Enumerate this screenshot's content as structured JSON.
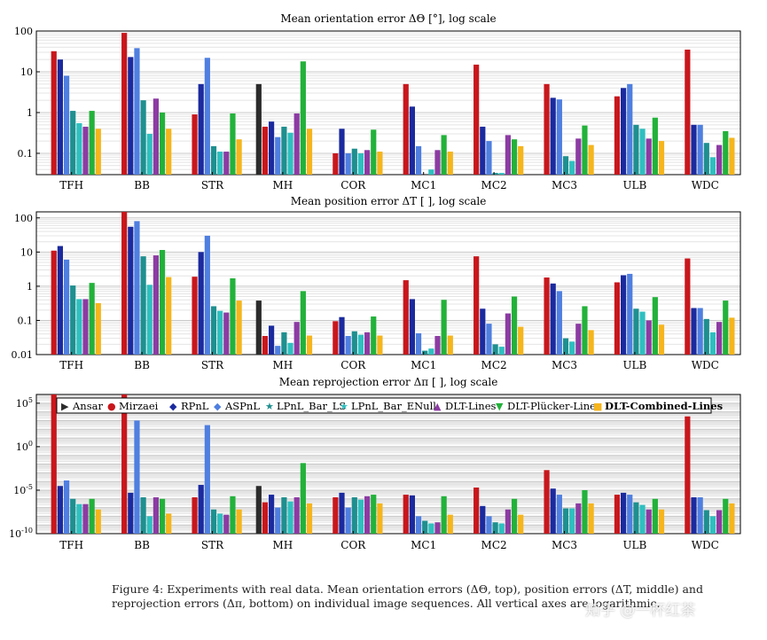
{
  "chart_data": [
    {
      "type": "bar",
      "title": "Mean orientation error ΔΘ [°], log scale",
      "scale": "log",
      "ylim": [
        0.03,
        100
      ],
      "yticks": [
        100,
        10,
        1,
        0.1
      ],
      "ytick_labels": [
        "100",
        "10",
        "1",
        "0.1"
      ],
      "categories": [
        "TFH",
        "BB",
        "STR",
        "MH",
        "COR",
        "MC1",
        "MC2",
        "MC3",
        "ULB",
        "WDC"
      ],
      "series": [
        {
          "name": "Ansar",
          "values": [
            null,
            null,
            null,
            5,
            null,
            null,
            null,
            null,
            null,
            null
          ]
        },
        {
          "name": "Mirzaei",
          "values": [
            32,
            90,
            0.9,
            0.45,
            0.1,
            5,
            15,
            5,
            2.5,
            35
          ]
        },
        {
          "name": "RPnL",
          "values": [
            20,
            23,
            5,
            0.6,
            0.4,
            1.4,
            0.45,
            2.3,
            4,
            0.5
          ]
        },
        {
          "name": "ASPnL",
          "values": [
            8,
            38,
            22,
            0.25,
            0.1,
            0.15,
            0.2,
            2.1,
            5,
            0.5
          ]
        },
        {
          "name": "LPnL_Bar_LS",
          "values": [
            1.1,
            2,
            0.15,
            0.45,
            0.13,
            0.03,
            0.033,
            0.085,
            0.5,
            0.18
          ]
        },
        {
          "name": "LPnL_Bar_ENull",
          "values": [
            0.55,
            0.3,
            0.11,
            0.32,
            0.1,
            0.04,
            0.033,
            0.065,
            0.4,
            0.08
          ]
        },
        {
          "name": "DLT-Lines",
          "values": [
            0.45,
            2.2,
            0.11,
            0.95,
            0.12,
            0.12,
            0.28,
            0.23,
            0.23,
            0.16
          ]
        },
        {
          "name": "DLT-Plücker-Lines",
          "values": [
            1.1,
            1,
            0.95,
            18,
            0.38,
            0.28,
            0.22,
            0.48,
            0.75,
            0.35
          ]
        },
        {
          "name": "DLT-Combined-Lines",
          "values": [
            0.4,
            0.4,
            0.22,
            0.4,
            0.11,
            0.11,
            0.15,
            0.16,
            0.2,
            0.24
          ]
        }
      ]
    },
    {
      "type": "bar",
      "title": "Mean position error ΔT [ ], log scale",
      "scale": "log",
      "ylim": [
        0.01,
        150
      ],
      "yticks": [
        100,
        10,
        1,
        0.1,
        0.01
      ],
      "ytick_labels": [
        "100",
        "10",
        "1",
        "0.1",
        "0.01"
      ],
      "categories": [
        "TFH",
        "BB",
        "STR",
        "MH",
        "COR",
        "MC1",
        "MC2",
        "MC3",
        "ULB",
        "WDC"
      ],
      "series": [
        {
          "name": "Ansar",
          "values": [
            null,
            null,
            null,
            0.38,
            null,
            null,
            null,
            null,
            null,
            null
          ]
        },
        {
          "name": "Mirzaei",
          "values": [
            11,
            170,
            1.9,
            0.035,
            0.095,
            1.5,
            7.5,
            1.8,
            1.3,
            6.5
          ]
        },
        {
          "name": "RPnL",
          "values": [
            15,
            55,
            10,
            0.07,
            0.125,
            0.42,
            0.22,
            1.2,
            2.1,
            0.23
          ]
        },
        {
          "name": "ASPnL",
          "values": [
            6,
            80,
            30,
            0.018,
            0.035,
            0.042,
            0.08,
            0.72,
            2.3,
            0.23
          ]
        },
        {
          "name": "LPnL_Bar_LS",
          "values": [
            1.05,
            7.5,
            0.26,
            0.045,
            0.048,
            0.013,
            0.02,
            0.03,
            0.22,
            0.11
          ]
        },
        {
          "name": "LPnL_Bar_ENull",
          "values": [
            0.42,
            1.1,
            0.19,
            0.022,
            0.038,
            0.015,
            0.017,
            0.024,
            0.18,
            0.045
          ]
        },
        {
          "name": "DLT-Lines",
          "values": [
            0.42,
            8,
            0.17,
            0.09,
            0.045,
            0.035,
            0.16,
            0.08,
            0.1,
            0.09
          ]
        },
        {
          "name": "DLT-Plücker-Lines",
          "values": [
            1.25,
            11.5,
            1.7,
            0.72,
            0.13,
            0.4,
            0.5,
            0.26,
            0.48,
            0.38
          ]
        },
        {
          "name": "DLT-Combined-Lines",
          "values": [
            0.32,
            1.85,
            0.38,
            0.036,
            0.036,
            0.036,
            0.065,
            0.052,
            0.075,
            0.12
          ]
        }
      ]
    },
    {
      "type": "bar",
      "title": "Mean reprojection error Δπ [ ], log scale",
      "scale": "log",
      "ylim": [
        1e-10,
        1000000.0
      ],
      "yticks": [
        100000.0,
        1,
        1e-05,
        1e-10
      ],
      "ytick_labels": [
        "10^5",
        "10^0",
        "10^-5",
        "10^-10"
      ],
      "categories": [
        "TFH",
        "BB",
        "STR",
        "MH",
        "COR",
        "MC1",
        "MC2",
        "MC3",
        "ULB",
        "WDC"
      ],
      "legend": {
        "position": "top",
        "entries": [
          "Ansar",
          "Mirzaei",
          "RPnL",
          "ASPnL",
          "LPnL_Bar_LS",
          "LPnL_Bar_ENull",
          "DLT-Lines",
          "DLT-Plücker-Lines",
          "DLT-Combined-Lines"
        ],
        "markers": [
          "▶",
          "●",
          "◆",
          "◆",
          "★",
          "★",
          "▲",
          "▼",
          "■"
        ]
      },
      "series": [
        {
          "name": "Ansar",
          "values": [
            null,
            null,
            null,
            3e-05,
            null,
            null,
            null,
            null,
            null,
            null
          ]
        },
        {
          "name": "Mirzaei",
          "values": [
            1000000.0,
            1000000.0,
            1.5e-06,
            4e-07,
            1.5e-06,
            3e-06,
            2e-05,
            0.002,
            3e-06,
            3000.0
          ]
        },
        {
          "name": "RPnL",
          "values": [
            3e-05,
            5e-06,
            4e-05,
            3e-06,
            5e-06,
            2.5e-06,
            1.5e-07,
            1.5e-05,
            5e-06,
            1.5e-06
          ]
        },
        {
          "name": "ASPnL",
          "values": [
            0.00013,
            1000.0,
            300.0,
            1e-07,
            1e-07,
            1e-08,
            1e-08,
            3e-06,
            3e-06,
            1.5e-06
          ]
        },
        {
          "name": "LPnL_Bar_LS",
          "values": [
            1e-06,
            1.5e-06,
            6e-08,
            1.5e-06,
            1.5e-06,
            3e-09,
            2e-09,
            8e-08,
            4e-07,
            5e-08
          ]
        },
        {
          "name": "LPnL_Bar_ENull",
          "values": [
            2.5e-07,
            1e-08,
            2e-08,
            5e-07,
            8e-07,
            1.5e-09,
            1.5e-09,
            8e-08,
            2e-07,
            1e-08
          ]
        },
        {
          "name": "DLT-Lines",
          "values": [
            2.5e-07,
            1.5e-06,
            1.5e-08,
            1.5e-06,
            2e-06,
            2e-09,
            6e-08,
            3e-07,
            6e-08,
            5e-08
          ]
        },
        {
          "name": "DLT-Plücker-Lines",
          "values": [
            1e-06,
            1e-06,
            2e-06,
            0.013,
            3e-06,
            2e-06,
            1e-06,
            1e-05,
            1e-06,
            1e-06
          ]
        },
        {
          "name": "DLT-Combined-Lines",
          "values": [
            6e-08,
            2e-08,
            6e-08,
            3e-07,
            3e-07,
            1.5e-08,
            1.5e-08,
            3e-07,
            6e-08,
            3e-07
          ]
        }
      ]
    }
  ],
  "colors": {
    "Ansar": "#2b2b2b",
    "Mirzaei": "#c8171c",
    "RPnL": "#1b2a9e",
    "ASPnL": "#4f7fe0",
    "LPnL_Bar_LS": "#1f8f8f",
    "LPnL_Bar_ENull": "#2fbfbf",
    "DLT-Lines": "#8c3ba3",
    "DLT-Plücker-Lines": "#22b23a",
    "DLT-Combined-Lines": "#f5b51c"
  },
  "caption": {
    "text": "Figure 4: Experiments with real data. Mean orientation errors (ΔΘ, top), position errors (ΔT, middle) and reprojection errors (Δπ, bottom) on individual image sequences. All vertical axes are logarithmic."
  },
  "watermark": "知乎 @一杯红茶"
}
